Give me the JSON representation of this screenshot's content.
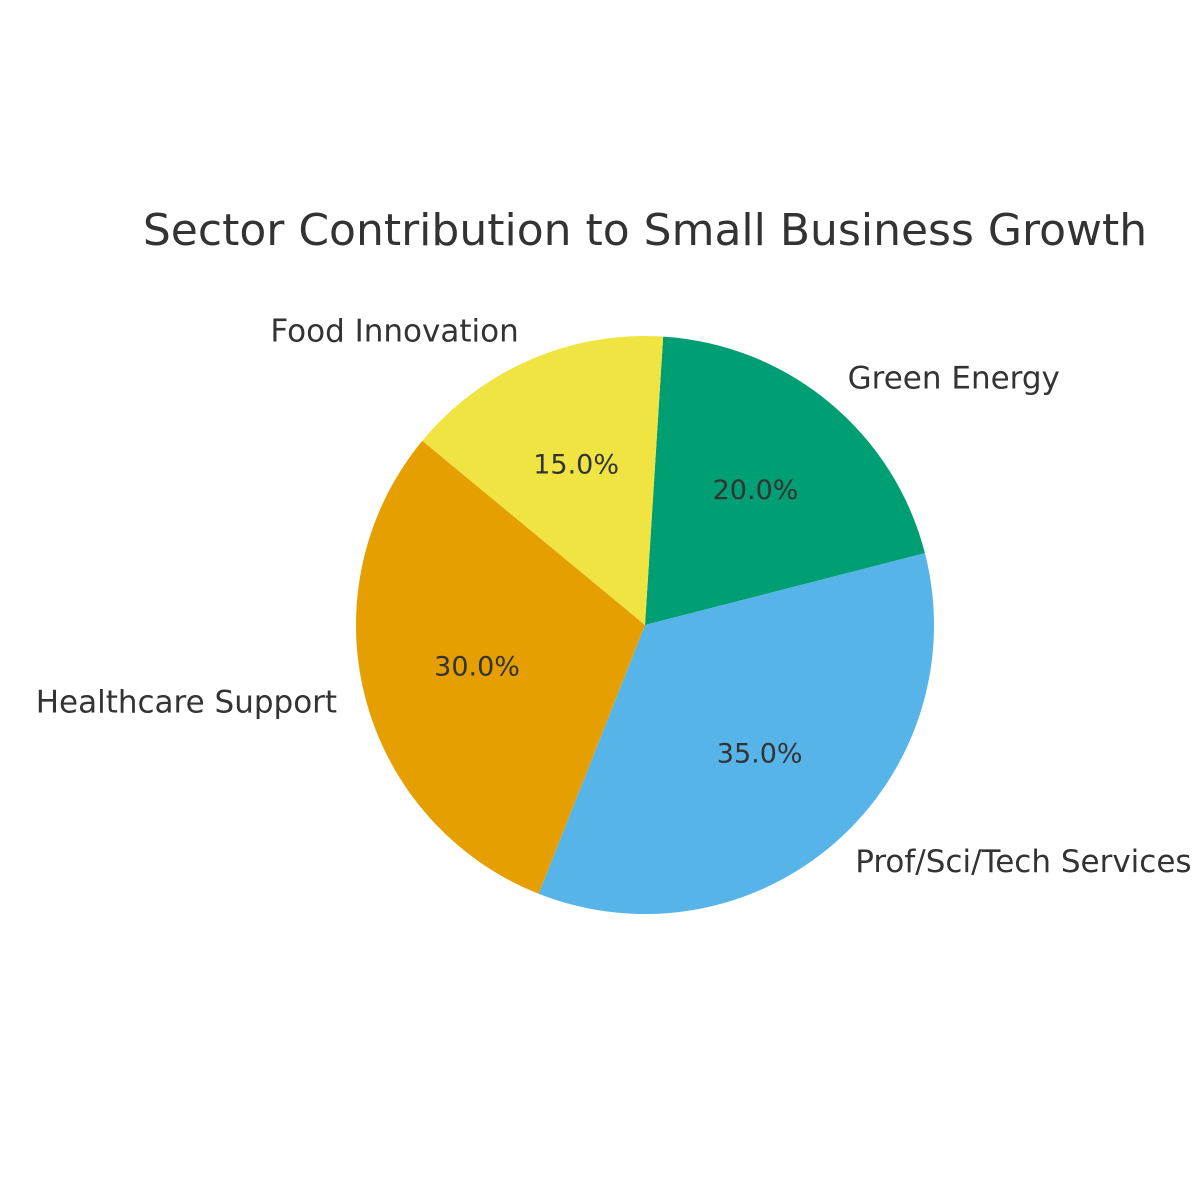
{
  "chart_data": {
    "type": "pie",
    "title": "Sector Contribution to Small Business Growth",
    "categories": [
      "Green Energy",
      "Prof/Sci/Tech Services",
      "Healthcare Support",
      "Food Innovation"
    ],
    "values": [
      20,
      35,
      30,
      15
    ],
    "value_labels": [
      "20.0%",
      "35.0%",
      "30.0%",
      "15.0%"
    ],
    "colors": [
      "#009e73",
      "#56b4e9",
      "#e69f00",
      "#f0e442"
    ]
  }
}
